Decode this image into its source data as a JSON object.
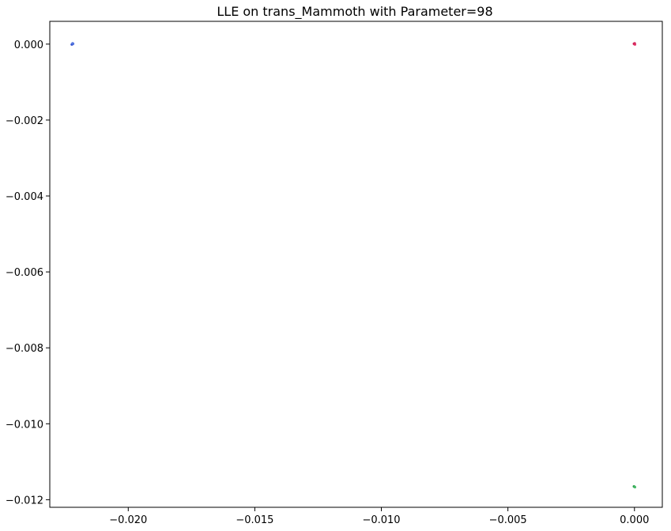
{
  "chart_data": {
    "type": "scatter",
    "title": "LLE on trans_Mammoth with Parameter=98",
    "xlabel": "",
    "ylabel": "",
    "xlim": [
      -0.0231,
      0.0011
    ],
    "ylim": [
      -0.0122,
      0.0006
    ],
    "grid": false,
    "xticks": [
      -0.02,
      -0.015,
      -0.01,
      -0.005,
      0.0
    ],
    "xtick_labels": [
      "−0.020",
      "−0.015",
      "−0.010",
      "−0.005",
      "0.000"
    ],
    "yticks": [
      0.0,
      -0.002,
      -0.004,
      -0.006,
      -0.008,
      -0.01,
      -0.012
    ],
    "ytick_labels": [
      "0.000",
      "−0.002",
      "−0.004",
      "−0.006",
      "−0.008",
      "−0.010",
      "−0.012"
    ],
    "points": [
      {
        "x": -0.02221,
        "y": 0.0,
        "color": "#3355dd"
      },
      {
        "x": -0.02218,
        "y": 1e-05,
        "color": "#4a6ad8"
      },
      {
        "x": -0.02223,
        "y": -1e-05,
        "color": "#2f4fcc"
      },
      {
        "x": -0.0222,
        "y": 2e-05,
        "color": "#5577e0"
      },
      {
        "x": 0.0,
        "y": 0.0,
        "color": "#e0245e"
      },
      {
        "x": -2e-05,
        "y": 1e-05,
        "color": "#cc1f55"
      },
      {
        "x": 2e-05,
        "y": -1e-05,
        "color": "#e8336a"
      },
      {
        "x": 1e-05,
        "y": 2e-05,
        "color": "#d42a5c"
      },
      {
        "x": 0.0,
        "y": -0.01166,
        "color": "#33aa55"
      },
      {
        "x": -2e-05,
        "y": -0.01165,
        "color": "#2e9e4c"
      },
      {
        "x": 2e-05,
        "y": -0.01167,
        "color": "#44bb66"
      }
    ]
  }
}
